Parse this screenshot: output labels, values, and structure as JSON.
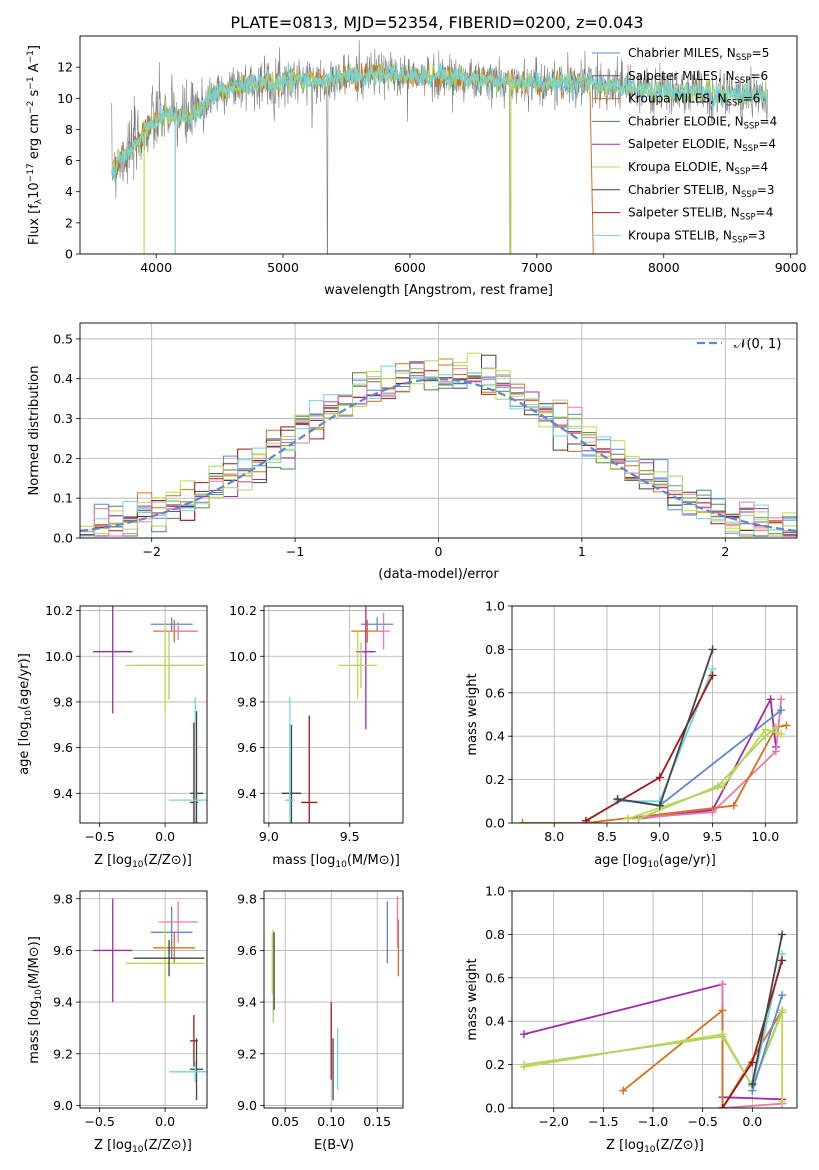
{
  "figure": {
    "title": "PLATE=0813, MJD=52354, FIBERID=0200, z=0.043"
  },
  "colors": {
    "Chabrier MILES": "#5b87d6",
    "Salpeter MILES": "#8a3ab0",
    "Kroupa MILES": "#d6711c",
    "Chabrier ELODIE": "#4a8a4a",
    "Salpeter ELODIE": "#a02aa8",
    "Kroupa ELODIE": "#c8d842",
    "Chabrier STELIB": "#454545",
    "Salpeter STELIB": "#a01818",
    "Kroupa STELIB": "#72d4de",
    "pink": "#e87aa8",
    "lime": "#a8d468",
    "gaussian": "#5b87d6",
    "data_gray": "#7a7a7a"
  },
  "chart_data": [
    {
      "id": "spectrum",
      "type": "line",
      "title": "PLATE=0813, MJD=52354, FIBERID=0200, z=0.043",
      "xlabel": "wavelength [Angstrom, rest frame]",
      "ylabel": "Flux [f",
      "xlim": [
        3400,
        9050
      ],
      "ylim": [
        0,
        14
      ],
      "xticks": [
        4000,
        5000,
        6000,
        7000,
        8000,
        9000
      ],
      "yticks": [
        0,
        2,
        4,
        6,
        8,
        10,
        12
      ],
      "grid": false,
      "legend_position": "top-right",
      "legend": [
        {
          "label": "Chabrier MILES, N",
          "n": "=5",
          "color": "#5b87d6"
        },
        {
          "label": "Salpeter MILES, N",
          "n": "=6",
          "color": "#8a3ab0"
        },
        {
          "label": "Kroupa MILES, N",
          "n": "=6",
          "color": "#d6711c"
        },
        {
          "label": "Chabrier ELODIE, N",
          "n": "=4",
          "color": "#4a8a4a"
        },
        {
          "label": "Salpeter ELODIE, N",
          "n": "=4",
          "color": "#a02aa8"
        },
        {
          "label": "Kroupa ELODIE, N",
          "n": "=4",
          "color": "#c8d842"
        },
        {
          "label": "Chabrier STELIB, N",
          "n": "=3",
          "color": "#454545"
        },
        {
          "label": "Salpeter STELIB, N",
          "n": "=4",
          "color": "#a01818"
        },
        {
          "label": "Kroupa STELIB, N",
          "n": "=3",
          "color": "#72d4de"
        }
      ],
      "continuum_points": [
        [
          3650,
          5.5
        ],
        [
          3750,
          6.3
        ],
        [
          3850,
          7.2
        ],
        [
          3950,
          8.3
        ],
        [
          4050,
          8.9
        ],
        [
          4150,
          8.9
        ],
        [
          4250,
          8.7
        ],
        [
          4350,
          9.3
        ],
        [
          4450,
          10.3
        ],
        [
          4550,
          10.6
        ],
        [
          4700,
          10.9
        ],
        [
          4900,
          11.0
        ],
        [
          5100,
          11.2
        ],
        [
          5300,
          11.1
        ],
        [
          5500,
          11.4
        ],
        [
          5800,
          11.6
        ],
        [
          6000,
          11.4
        ],
        [
          6300,
          11.4
        ],
        [
          6600,
          11.1
        ],
        [
          6900,
          11.0
        ],
        [
          7200,
          11.0
        ],
        [
          7500,
          11.0
        ],
        [
          7800,
          10.6
        ],
        [
          8100,
          10.4
        ],
        [
          8400,
          10.3
        ],
        [
          8700,
          10.2
        ],
        [
          8820,
          10.1
        ]
      ]
    },
    {
      "id": "residuals",
      "type": "histogram",
      "xlabel": "(data-model)/error",
      "ylabel": "Normed distribution",
      "xlim": [
        -2.5,
        2.5
      ],
      "ylim": [
        0,
        0.54
      ],
      "xticks": [
        -2,
        -1,
        0,
        1,
        2
      ],
      "yticks": [
        0.0,
        0.1,
        0.2,
        0.3,
        0.4,
        0.5
      ],
      "grid": true,
      "legend_position": "top-right",
      "legend": [
        {
          "label": "𝒩(0, 1)",
          "color": "#5b87d6"
        }
      ],
      "bin_width": 0.1
    },
    {
      "id": "age_vs_Z",
      "type": "errorbar",
      "xlabel": "Z [log",
      "ylabel": "age  [log",
      "xlim": [
        -0.65,
        0.32
      ],
      "ylim": [
        9.27,
        10.22
      ],
      "xticks": [
        -0.5,
        0.0
      ],
      "yticks": [
        9.4,
        9.6,
        9.8,
        10.0,
        10.2
      ],
      "grid": true,
      "points": [
        {
          "x": 0.05,
          "y": 10.14,
          "xerr": 0.16,
          "yerr": 0.03,
          "color": "#5b87d6"
        },
        {
          "x": 0.07,
          "y": 10.11,
          "xerr": 0.16,
          "yerr": 0.05,
          "color": "#d6711c"
        },
        {
          "x": 0.1,
          "y": 10.11,
          "xerr": 0.15,
          "yerr": 0.04,
          "color": "#e87aa8"
        },
        {
          "x": -0.4,
          "y": 10.02,
          "xerr": 0.15,
          "yerr": 0.27,
          "color": "#a02aa8"
        },
        {
          "x": 0.0,
          "y": 9.96,
          "xerr": 0.3,
          "yerr": 0.2,
          "color": "#c8d842"
        },
        {
          "x": 0.03,
          "y": 9.96,
          "xerr": 0.27,
          "yerr": 0.15,
          "color": "#a8d468"
        },
        {
          "x": 0.22,
          "y": 9.36,
          "xerr": 0.03,
          "yerr": 0.35,
          "color": "#a01818"
        },
        {
          "x": 0.24,
          "y": 9.4,
          "xerr": 0.05,
          "yerr": 0.36,
          "color": "#454545"
        },
        {
          "x": 0.23,
          "y": 9.37,
          "xerr": 0.2,
          "yerr": 0.45,
          "color": "#72d4de"
        }
      ]
    },
    {
      "id": "age_vs_mass",
      "type": "errorbar",
      "xlabel": "mass [log",
      "ylabel": "",
      "xlim": [
        8.97,
        9.83
      ],
      "ylim": [
        9.27,
        10.22
      ],
      "xticks": [
        9.0,
        9.5
      ],
      "yticks": [
        9.4,
        9.6,
        9.8,
        10.0,
        10.2
      ],
      "grid": true,
      "points": [
        {
          "x": 9.67,
          "y": 10.14,
          "xerr": 0.1,
          "yerr": 0.03,
          "color": "#5b87d6"
        },
        {
          "x": 9.61,
          "y": 10.11,
          "xerr": 0.1,
          "yerr": 0.05,
          "color": "#d6711c"
        },
        {
          "x": 9.71,
          "y": 10.11,
          "xerr": 0.04,
          "yerr": 0.08,
          "color": "#e87aa8"
        },
        {
          "x": 9.6,
          "y": 10.02,
          "xerr": 0.06,
          "yerr": 0.34,
          "color": "#a02aa8"
        },
        {
          "x": 9.55,
          "y": 9.96,
          "xerr": 0.12,
          "yerr": 0.15,
          "color": "#c8d842"
        },
        {
          "x": 9.57,
          "y": 9.96,
          "xerr": 0.05,
          "yerr": 0.1,
          "color": "#a8d468"
        },
        {
          "x": 9.25,
          "y": 9.36,
          "xerr": 0.05,
          "yerr": 0.38,
          "color": "#a01818"
        },
        {
          "x": 9.14,
          "y": 9.4,
          "xerr": 0.06,
          "yerr": 0.3,
          "color": "#454545"
        },
        {
          "x": 9.13,
          "y": 9.37,
          "xerr": 0.03,
          "yerr": 0.45,
          "color": "#72d4de"
        }
      ]
    },
    {
      "id": "massweight_vs_age",
      "type": "line",
      "xlabel": "age  [log",
      "ylabel": "mass weight",
      "xlim": [
        7.6,
        10.3
      ],
      "ylim": [
        0.0,
        1.0
      ],
      "xticks": [
        8.0,
        8.5,
        9.0,
        9.5,
        10.0
      ],
      "yticks": [
        0.0,
        0.2,
        0.4,
        0.6,
        0.8,
        1.0
      ],
      "grid": true,
      "series": [
        {
          "color": "#a02aa8",
          "x": [
            8.8,
            9.5,
            10.05,
            10.1
          ],
          "y": [
            0.02,
            0.06,
            0.57,
            0.35
          ]
        },
        {
          "color": "#e87aa8",
          "x": [
            8.7,
            9.5,
            10.1,
            10.15
          ],
          "y": [
            0.02,
            0.05,
            0.33,
            0.57
          ]
        },
        {
          "color": "#d6711c",
          "x": [
            7.7,
            8.3,
            9.7,
            10.1,
            10.2
          ],
          "y": [
            0.0,
            0.0,
            0.08,
            0.44,
            0.45
          ]
        },
        {
          "color": "#c8d842",
          "x": [
            8.7,
            9.6,
            10.0,
            10.15
          ],
          "y": [
            0.02,
            0.17,
            0.43,
            0.41
          ]
        },
        {
          "color": "#a8d468",
          "x": [
            8.8,
            9.55,
            10.0,
            10.1
          ],
          "y": [
            0.02,
            0.17,
            0.4,
            0.44
          ]
        },
        {
          "color": "#72d4de",
          "x": [
            8.6,
            9.0,
            9.5
          ],
          "y": [
            0.1,
            0.1,
            0.71
          ]
        },
        {
          "color": "#5b87d6",
          "x": [
            8.6,
            9.0,
            10.15
          ],
          "y": [
            0.11,
            0.08,
            0.52
          ]
        },
        {
          "color": "#a01818",
          "x": [
            8.3,
            9.0,
            9.5
          ],
          "y": [
            0.01,
            0.21,
            0.68
          ]
        },
        {
          "color": "#454545",
          "x": [
            8.6,
            9.0,
            9.5
          ],
          "y": [
            0.11,
            0.08,
            0.8
          ]
        }
      ]
    },
    {
      "id": "mass_vs_Z",
      "type": "errorbar",
      "xlabel": "Z [log",
      "ylabel": "mass [log",
      "xlim": [
        -0.65,
        0.32
      ],
      "ylim": [
        8.99,
        9.83
      ],
      "xticks": [
        -0.5,
        0.0
      ],
      "yticks": [
        9.0,
        9.2,
        9.4,
        9.6,
        9.8
      ],
      "grid": true,
      "points": [
        {
          "x": 0.05,
          "y": 9.67,
          "xerr": 0.16,
          "yerr": 0.1,
          "color": "#5b87d6"
        },
        {
          "x": 0.07,
          "y": 9.61,
          "xerr": 0.16,
          "yerr": 0.06,
          "color": "#d6711c"
        },
        {
          "x": 0.1,
          "y": 9.71,
          "xerr": 0.15,
          "yerr": 0.08,
          "color": "#e87aa8"
        },
        {
          "x": -0.4,
          "y": 9.6,
          "xerr": 0.15,
          "yerr": 0.2,
          "color": "#a02aa8"
        },
        {
          "x": 0.0,
          "y": 9.55,
          "xerr": 0.3,
          "yerr": 0.15,
          "color": "#c8d842"
        },
        {
          "x": 0.03,
          "y": 9.57,
          "xerr": 0.27,
          "yerr": 0.07,
          "color": "#454545"
        },
        {
          "x": 0.22,
          "y": 9.25,
          "xerr": 0.03,
          "yerr": 0.1,
          "color": "#a01818"
        },
        {
          "x": 0.24,
          "y": 9.14,
          "xerr": 0.05,
          "yerr": 0.12,
          "color": "#454545"
        },
        {
          "x": 0.23,
          "y": 9.13,
          "xerr": 0.2,
          "yerr": 0.04,
          "color": "#72d4de"
        }
      ]
    },
    {
      "id": "mass_vs_ebv",
      "type": "errorbar",
      "xlabel": "E(B-V)",
      "ylabel": "",
      "xlim": [
        0.027,
        0.178
      ],
      "ylim": [
        8.99,
        9.83
      ],
      "xticks": [
        0.05,
        0.1,
        0.15
      ],
      "yticks": [
        9.0,
        9.2,
        9.4,
        9.6,
        9.8
      ],
      "grid": true,
      "points": [
        {
          "x": 0.161,
          "y": 9.67,
          "xerr": 0.0,
          "yerr": 0.12,
          "color": "#5b87d6"
        },
        {
          "x": 0.173,
          "y": 9.61,
          "xerr": 0.0,
          "yerr": 0.11,
          "color": "#d6711c"
        },
        {
          "x": 0.172,
          "y": 9.71,
          "xerr": 0.0,
          "yerr": 0.1,
          "color": "#e87aa8"
        },
        {
          "x": 0.036,
          "y": 9.55,
          "xerr": 0.0,
          "yerr": 0.12,
          "color": "#c8d842"
        },
        {
          "x": 0.037,
          "y": 9.5,
          "xerr": 0.0,
          "yerr": 0.18,
          "color": "#a8d468"
        },
        {
          "x": 0.038,
          "y": 9.52,
          "xerr": 0.0,
          "yerr": 0.15,
          "color": "#454545"
        },
        {
          "x": 0.1,
          "y": 9.25,
          "xerr": 0.0,
          "yerr": 0.15,
          "color": "#a01818"
        },
        {
          "x": 0.102,
          "y": 9.14,
          "xerr": 0.0,
          "yerr": 0.12,
          "color": "#454545"
        },
        {
          "x": 0.107,
          "y": 9.18,
          "xerr": 0.0,
          "yerr": 0.12,
          "color": "#72d4de"
        }
      ]
    },
    {
      "id": "massweight_vs_Z",
      "type": "line",
      "xlabel": "Z [log",
      "ylabel": "mass weight",
      "xlim": [
        -2.42,
        0.45
      ],
      "ylim": [
        0.0,
        1.0
      ],
      "xticks": [
        -2.0,
        -1.5,
        -1.0,
        -0.5,
        0.0
      ],
      "yticks": [
        0.0,
        0.2,
        0.4,
        0.6,
        0.8,
        1.0
      ],
      "grid": true,
      "series": [
        {
          "color": "#a02aa8",
          "x": [
            -2.3,
            -0.3,
            -0.3,
            0.3
          ],
          "y": [
            0.34,
            0.57,
            0.05,
            0.04
          ]
        },
        {
          "color": "#e87aa8",
          "x": [
            -0.3,
            -0.3,
            0.3
          ],
          "y": [
            0.57,
            0.0,
            0.02
          ]
        },
        {
          "color": "#d6711c",
          "x": [
            -1.3,
            -0.3,
            -0.3,
            0.3
          ],
          "y": [
            0.08,
            0.45,
            0.0,
            0.45
          ]
        },
        {
          "color": "#c8d842",
          "x": [
            -2.3,
            -0.3,
            0.0,
            0.3,
            0.3
          ],
          "y": [
            0.19,
            0.34,
            0.1,
            0.45,
            0.03
          ]
        },
        {
          "color": "#a8d468",
          "x": [
            -2.3,
            -0.3,
            0.0,
            0.3
          ],
          "y": [
            0.2,
            0.33,
            0.1,
            0.44
          ]
        },
        {
          "color": "#72d4de",
          "x": [
            0.0,
            0.3
          ],
          "y": [
            0.1,
            0.71
          ]
        },
        {
          "color": "#5b87d6",
          "x": [
            0.0,
            0.3
          ],
          "y": [
            0.08,
            0.52
          ]
        },
        {
          "color": "#a01818",
          "x": [
            -0.3,
            0.0,
            0.3
          ],
          "y": [
            0.0,
            0.21,
            0.68
          ]
        },
        {
          "color": "#454545",
          "x": [
            0.0,
            0.3
          ],
          "y": [
            0.11,
            0.8
          ]
        }
      ]
    }
  ]
}
